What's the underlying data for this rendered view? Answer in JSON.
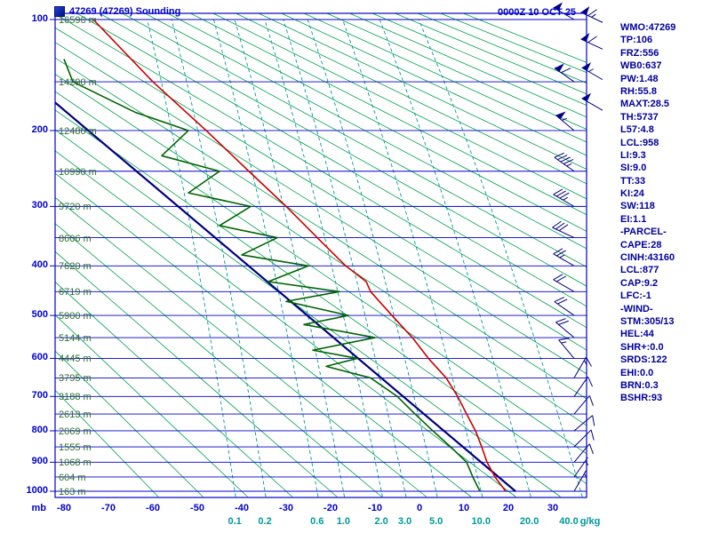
{
  "header": {
    "title": "47269 (47269) Sounding",
    "datetime": "0000Z 10 OCT 25"
  },
  "colors": {
    "frame_blue": "#0000cc",
    "grid_blue": "#0000cc",
    "adiabat_green": "#00a050",
    "mixing_teal": "#009999",
    "temp_red": "#cc0000",
    "dewpoint_green": "#006400",
    "parcel_navy": "#000080",
    "wind_navy": "#000080",
    "stats_navy": "#000099",
    "height_label_green": "#2d6e2d"
  },
  "axes": {
    "pressure_unit": "mb",
    "pressure_ticks": [
      100,
      200,
      300,
      400,
      500,
      600,
      700,
      800,
      900,
      1000
    ],
    "temp_ticks_c": [
      -80,
      -70,
      -60,
      -50,
      -40,
      -30,
      -20,
      -10,
      0,
      10,
      20,
      30
    ],
    "mixing_ratio_labels": [
      "0.1",
      "0.2",
      "0.6",
      "1.0",
      "2.0",
      "3.0",
      "5.0",
      "10.0",
      "20.0",
      "40.0"
    ],
    "mixing_ratio_unit": "g/kg"
  },
  "height_labels": [
    {
      "p": 100,
      "label": "16596 m"
    },
    {
      "p": 150,
      "label": "14290 m"
    },
    {
      "p": 200,
      "label": "12480 m"
    },
    {
      "p": 250,
      "label": "10990 m"
    },
    {
      "p": 300,
      "label": "9720 m"
    },
    {
      "p": 350,
      "label": "8606 m"
    },
    {
      "p": 400,
      "label": "7620 m"
    },
    {
      "p": 450,
      "label": "6719 m"
    },
    {
      "p": 500,
      "label": "5900 m"
    },
    {
      "p": 550,
      "label": "5144 m"
    },
    {
      "p": 600,
      "label": "4445 m"
    },
    {
      "p": 650,
      "label": "3795 m"
    },
    {
      "p": 700,
      "label": "3188 m"
    },
    {
      "p": 750,
      "label": "2613 m"
    },
    {
      "p": 800,
      "label": "2069 m"
    },
    {
      "p": 850,
      "label": "1555 m"
    },
    {
      "p": 900,
      "label": "1068 m"
    },
    {
      "p": 950,
      "label": "604 m"
    },
    {
      "p": 1000,
      "label": "163 m"
    }
  ],
  "chart_data": {
    "type": "line",
    "diagram": "stuve-sounding",
    "title": "47269 (47269) Sounding",
    "datetime": "0000Z 10 OCT 25",
    "pressure_range_mb": [
      100,
      1000
    ],
    "temp_range_c": [
      -80,
      38
    ],
    "isobar_step_mb": 50,
    "dry_adiabat_theta_c": {
      "min": -60,
      "max": 280,
      "step": 10
    },
    "mixing_ratio_lines_gkg": [
      0.1,
      0.2,
      0.6,
      1.0,
      2.0,
      3.0,
      5.0,
      10.0,
      20.0,
      40.0
    ],
    "temperature_profile": [
      {
        "p": 1000,
        "t": 19.4
      },
      {
        "p": 950,
        "t": 17.0
      },
      {
        "p": 900,
        "t": 15.2
      },
      {
        "p": 850,
        "t": 14.0
      },
      {
        "p": 800,
        "t": 12.6
      },
      {
        "p": 750,
        "t": 10.6
      },
      {
        "p": 700,
        "t": 8.6
      },
      {
        "p": 650,
        "t": 6.0
      },
      {
        "p": 600,
        "t": 2.0
      },
      {
        "p": 550,
        "t": -1.6
      },
      {
        "p": 500,
        "t": -6.2
      },
      {
        "p": 450,
        "t": -11.0
      },
      {
        "p": 430,
        "t": -12.0
      },
      {
        "p": 400,
        "t": -16.6
      },
      {
        "p": 350,
        "t": -23.0
      },
      {
        "p": 300,
        "t": -30.0
      },
      {
        "p": 250,
        "t": -38.4
      },
      {
        "p": 200,
        "t": -48.0
      },
      {
        "p": 150,
        "t": -60.0
      },
      {
        "p": 100,
        "t": -73.4
      }
    ],
    "dewpoint_profile": [
      {
        "p": 1000,
        "t": 13.6
      },
      {
        "p": 950,
        "t": 12.0
      },
      {
        "p": 900,
        "t": 10.6
      },
      {
        "p": 850,
        "t": 7.0
      },
      {
        "p": 800,
        "t": 3.0
      },
      {
        "p": 750,
        "t": -1.0
      },
      {
        "p": 700,
        "t": -5.0
      },
      {
        "p": 650,
        "t": -11.0
      },
      {
        "p": 620,
        "t": -21.0
      },
      {
        "p": 600,
        "t": -14.0
      },
      {
        "p": 580,
        "t": -24.0
      },
      {
        "p": 550,
        "t": -10.0
      },
      {
        "p": 520,
        "t": -26.0
      },
      {
        "p": 500,
        "t": -16.0
      },
      {
        "p": 470,
        "t": -30.0
      },
      {
        "p": 450,
        "t": -18.0
      },
      {
        "p": 430,
        "t": -34.0
      },
      {
        "p": 400,
        "t": -25.0
      },
      {
        "p": 380,
        "t": -40.0
      },
      {
        "p": 350,
        "t": -32.0
      },
      {
        "p": 330,
        "t": -45.0
      },
      {
        "p": 300,
        "t": -38.0
      },
      {
        "p": 280,
        "t": -52.0
      },
      {
        "p": 250,
        "t": -45.0
      },
      {
        "p": 230,
        "t": -58.0
      },
      {
        "p": 200,
        "t": -52.0
      },
      {
        "p": 180,
        "t": -64.0
      },
      {
        "p": 150,
        "t": -78.0
      },
      {
        "p": 130,
        "t": -80.0
      }
    ],
    "parcel_line": [
      {
        "p": 1000,
        "t": 21.6
      },
      {
        "p": 170,
        "t": -82.0
      }
    ],
    "winds": [
      {
        "p": 1000,
        "dir": 30,
        "spd": 5
      },
      {
        "p": 950,
        "dir": 35,
        "spd": 5
      },
      {
        "p": 900,
        "dir": 40,
        "spd": 8
      },
      {
        "p": 850,
        "dir": 45,
        "spd": 10
      },
      {
        "p": 800,
        "dir": 50,
        "spd": 10
      },
      {
        "p": 750,
        "dir": 40,
        "spd": 10
      },
      {
        "p": 700,
        "dir": 35,
        "spd": 12
      },
      {
        "p": 650,
        "dir": 30,
        "spd": 15
      },
      {
        "p": 600,
        "dir": 320,
        "spd": 15
      },
      {
        "p": 550,
        "dir": 310,
        "spd": 18
      },
      {
        "p": 500,
        "dir": 305,
        "spd": 20
      },
      {
        "p": 450,
        "dir": 300,
        "spd": 22
      },
      {
        "p": 400,
        "dir": 300,
        "spd": 25
      },
      {
        "p": 350,
        "dir": 295,
        "spd": 30
      },
      {
        "p": 300,
        "dir": 300,
        "spd": 35
      },
      {
        "p": 250,
        "dir": 305,
        "spd": 45
      },
      {
        "p": 200,
        "dir": 310,
        "spd": 55
      },
      {
        "p": 150,
        "dir": 305,
        "spd": 60
      },
      {
        "p": 100,
        "dir": 300,
        "spd": 50
      }
    ],
    "winds_outer": [
      {
        "p": 102,
        "dir": 295,
        "spd": 65
      },
      {
        "p": 122,
        "dir": 295,
        "spd": 60
      },
      {
        "p": 148,
        "dir": 300,
        "spd": 55
      },
      {
        "p": 178,
        "dir": 300,
        "spd": 50
      }
    ]
  },
  "stats_panel": {
    "lines": [
      "WMO:47269",
      "TP:106",
      "FRZ:556",
      "WB0:637",
      "PW:1.48",
      "RH:55.8",
      "MAXT:28.5",
      "TH:5737",
      "L57:4.8",
      "LCL:958",
      "LI:9.3",
      "SI:9.0",
      "TT:33",
      "KI:24",
      "SW:118",
      "EI:1.1",
      "-PARCEL-",
      "CAPE:28",
      "CINH:43160",
      "LCL:877",
      "CAP:9.2",
      "LFC:-1",
      "-WIND-",
      "STM:305/13",
      "HEL:44",
      "SHR+:0.0",
      "SRDS:122",
      "EHI:0.0",
      "BRN:0.3",
      "BSHR:93"
    ]
  }
}
